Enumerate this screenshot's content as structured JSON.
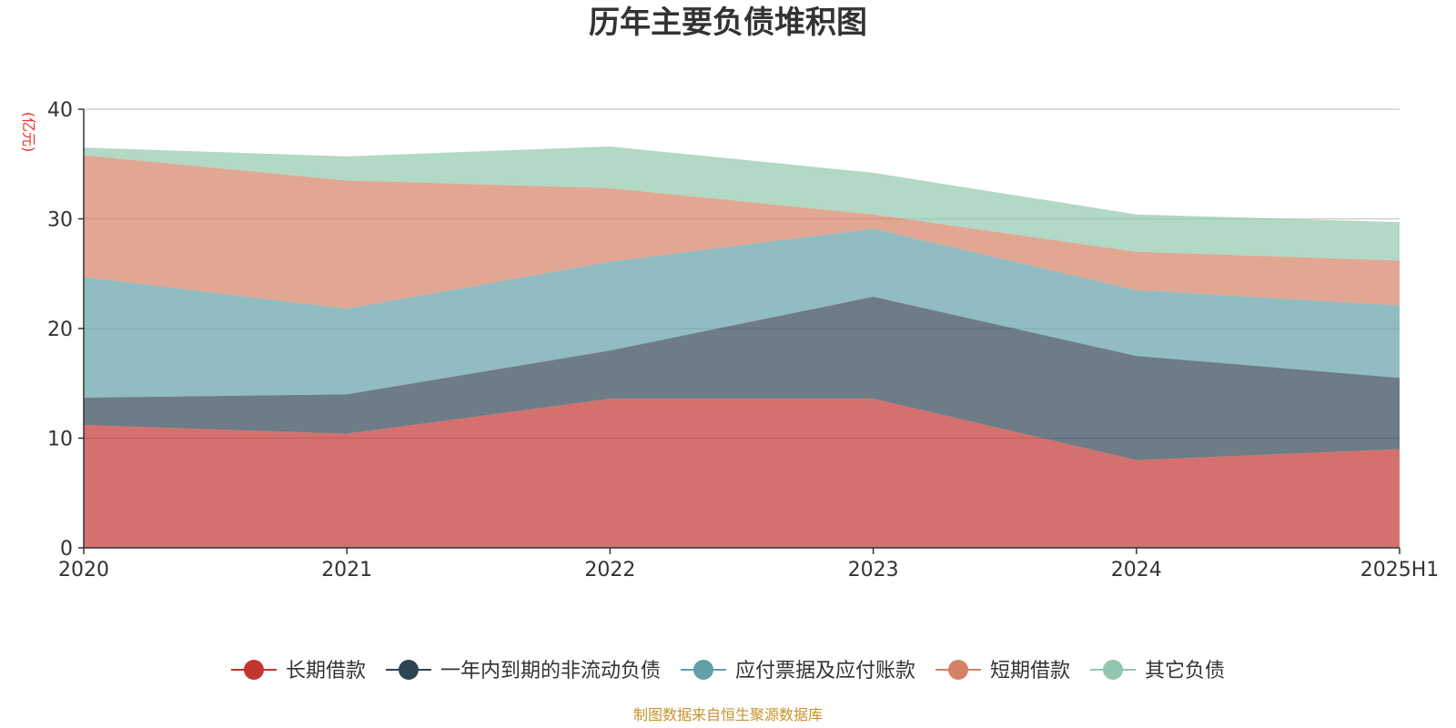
{
  "chart_data": {
    "type": "area",
    "stacked": true,
    "title": "历年主要负债堆积图",
    "y_unit": "(亿元)",
    "categories": [
      "2020",
      "2021",
      "2022",
      "2023",
      "2024",
      "2025H1"
    ],
    "ylim": [
      0,
      40
    ],
    "yticks": [
      "0",
      "10",
      "20",
      "30",
      "40"
    ],
    "grid": true,
    "legend_position": "bottom",
    "series": [
      {
        "name": "长期借款",
        "color": "#c23531",
        "values": [
          11.2,
          10.4,
          13.6,
          13.6,
          8.0,
          9.0
        ]
      },
      {
        "name": "一年内到期的非流动负债",
        "color": "#2f4554",
        "values": [
          2.5,
          3.6,
          4.4,
          9.3,
          9.5,
          6.5
        ]
      },
      {
        "name": "应付票据及应付账款",
        "color": "#61a0a8",
        "values": [
          11.0,
          7.8,
          8.1,
          6.2,
          6.0,
          6.6
        ]
      },
      {
        "name": "短期借款",
        "color": "#d48265",
        "values": [
          11.1,
          11.7,
          6.7,
          1.3,
          3.5,
          4.1
        ]
      },
      {
        "name": "其它负债",
        "color": "#91c7ae",
        "values": [
          0.7,
          2.2,
          3.8,
          3.8,
          3.4,
          3.5
        ]
      }
    ]
  },
  "footer": {
    "source": "制图数据来自恒生聚源数据库"
  }
}
